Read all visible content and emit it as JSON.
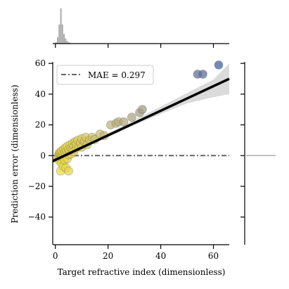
{
  "chart_data": {
    "type": "scatter",
    "xlabel": "Target refractive index (dimensionless)",
    "ylabel": "Prediction error (dimensionless)",
    "xlim": [
      -1,
      66
    ],
    "ylim": [
      -58,
      61
    ],
    "xticks": [
      0,
      20,
      40,
      60
    ],
    "xtick_labels": [
      "0",
      "20",
      "40",
      "60"
    ],
    "yticks": [
      -40,
      -20,
      0,
      20,
      40,
      60
    ],
    "ytick_labels": [
      "−40",
      "−20",
      "0",
      "20",
      "40",
      "60"
    ],
    "legend": {
      "position": "top-left",
      "label": "MAE = 0.297"
    },
    "grid": false,
    "zero_line": {
      "y": 0,
      "style": "dash-dot",
      "color": "#666666"
    },
    "fit_line": {
      "x": [
        -1,
        66
      ],
      "y": [
        -3.6,
        50.0
      ],
      "color": "#000000"
    },
    "confidence_band": {
      "x": [
        -1,
        10,
        20,
        30,
        40,
        50,
        60,
        66
      ],
      "lower": [
        -5.0,
        4.0,
        12.0,
        20.0,
        27.0,
        34.0,
        38.0,
        40.0
      ],
      "upper": [
        -2.3,
        5.6,
        14.6,
        23.2,
        31.8,
        40.8,
        49.5,
        60.0
      ]
    },
    "colormap": [
      "#f0e040",
      "#bdb27a",
      "#8d8a86",
      "#3f5d9c"
    ],
    "points": [
      {
        "x": 1.0,
        "y": -2.0
      },
      {
        "x": 1.2,
        "y": 0.5
      },
      {
        "x": 1.4,
        "y": -1.0
      },
      {
        "x": 1.5,
        "y": 1.5
      },
      {
        "x": 1.6,
        "y": -3.5
      },
      {
        "x": 1.7,
        "y": 0.0
      },
      {
        "x": 1.8,
        "y": 2.0
      },
      {
        "x": 1.9,
        "y": -1.5
      },
      {
        "x": 2.0,
        "y": -10.0
      },
      {
        "x": 2.0,
        "y": 1.0
      },
      {
        "x": 2.1,
        "y": -2.5
      },
      {
        "x": 2.2,
        "y": 3.0
      },
      {
        "x": 2.3,
        "y": -0.5
      },
      {
        "x": 2.4,
        "y": -5.0
      },
      {
        "x": 2.5,
        "y": 0.5
      },
      {
        "x": 2.6,
        "y": 2.5
      },
      {
        "x": 2.8,
        "y": -1.0
      },
      {
        "x": 3.0,
        "y": 1.5
      },
      {
        "x": 3.0,
        "y": -7.0
      },
      {
        "x": 3.2,
        "y": 4.0
      },
      {
        "x": 3.4,
        "y": 0.0
      },
      {
        "x": 3.5,
        "y": -3.0
      },
      {
        "x": 3.6,
        "y": 2.0
      },
      {
        "x": 3.8,
        "y": 5.0
      },
      {
        "x": 4.0,
        "y": -8.0
      },
      {
        "x": 4.0,
        "y": 1.0
      },
      {
        "x": 4.2,
        "y": 3.0
      },
      {
        "x": 4.5,
        "y": -2.0
      },
      {
        "x": 4.5,
        "y": 6.0
      },
      {
        "x": 4.8,
        "y": 2.0
      },
      {
        "x": 5.0,
        "y": -10.0
      },
      {
        "x": 5.0,
        "y": 4.0
      },
      {
        "x": 5.2,
        "y": 0.5
      },
      {
        "x": 5.5,
        "y": 7.0
      },
      {
        "x": 5.5,
        "y": 3.0
      },
      {
        "x": 6.0,
        "y": 5.0
      },
      {
        "x": 6.0,
        "y": 1.0
      },
      {
        "x": 6.5,
        "y": 4.0
      },
      {
        "x": 6.5,
        "y": 8.0
      },
      {
        "x": 7.0,
        "y": 6.0
      },
      {
        "x": 7.0,
        "y": 2.5
      },
      {
        "x": 7.5,
        "y": 9.0
      },
      {
        "x": 8.0,
        "y": 5.0
      },
      {
        "x": 8.0,
        "y": 7.5
      },
      {
        "x": 8.5,
        "y": 10.0
      },
      {
        "x": 9.0,
        "y": 6.0
      },
      {
        "x": 9.5,
        "y": 8.0
      },
      {
        "x": 10.0,
        "y": 11.0
      },
      {
        "x": 10.0,
        "y": 5.5
      },
      {
        "x": 11.0,
        "y": 9.0
      },
      {
        "x": 11.5,
        "y": 12.0
      },
      {
        "x": 12.0,
        "y": 7.0
      },
      {
        "x": 13.0,
        "y": 10.0
      },
      {
        "x": 14.0,
        "y": 12.0
      },
      {
        "x": 15.0,
        "y": 10.5
      },
      {
        "x": 17.0,
        "y": 14.0
      },
      {
        "x": 18.5,
        "y": 13.0
      },
      {
        "x": 21.0,
        "y": 20.0
      },
      {
        "x": 23.0,
        "y": 21.0
      },
      {
        "x": 24.0,
        "y": 22.0
      },
      {
        "x": 26.0,
        "y": 22.0
      },
      {
        "x": 29.0,
        "y": 25.0
      },
      {
        "x": 32.0,
        "y": 28.0
      },
      {
        "x": 33.0,
        "y": 30.0
      },
      {
        "x": 54.0,
        "y": 53.0
      },
      {
        "x": 56.0,
        "y": 53.0
      },
      {
        "x": 62.0,
        "y": 59.0
      }
    ],
    "top_histogram": {
      "bin_edges": [
        0,
        0.6,
        1.2,
        1.8,
        2.4,
        3.0,
        3.6,
        4.2,
        4.8,
        5.4,
        6.0
      ],
      "counts": [
        2,
        10,
        30,
        55,
        30,
        15,
        8,
        4,
        2,
        1
      ]
    },
    "right_histogram": {
      "y": 0
    }
  }
}
